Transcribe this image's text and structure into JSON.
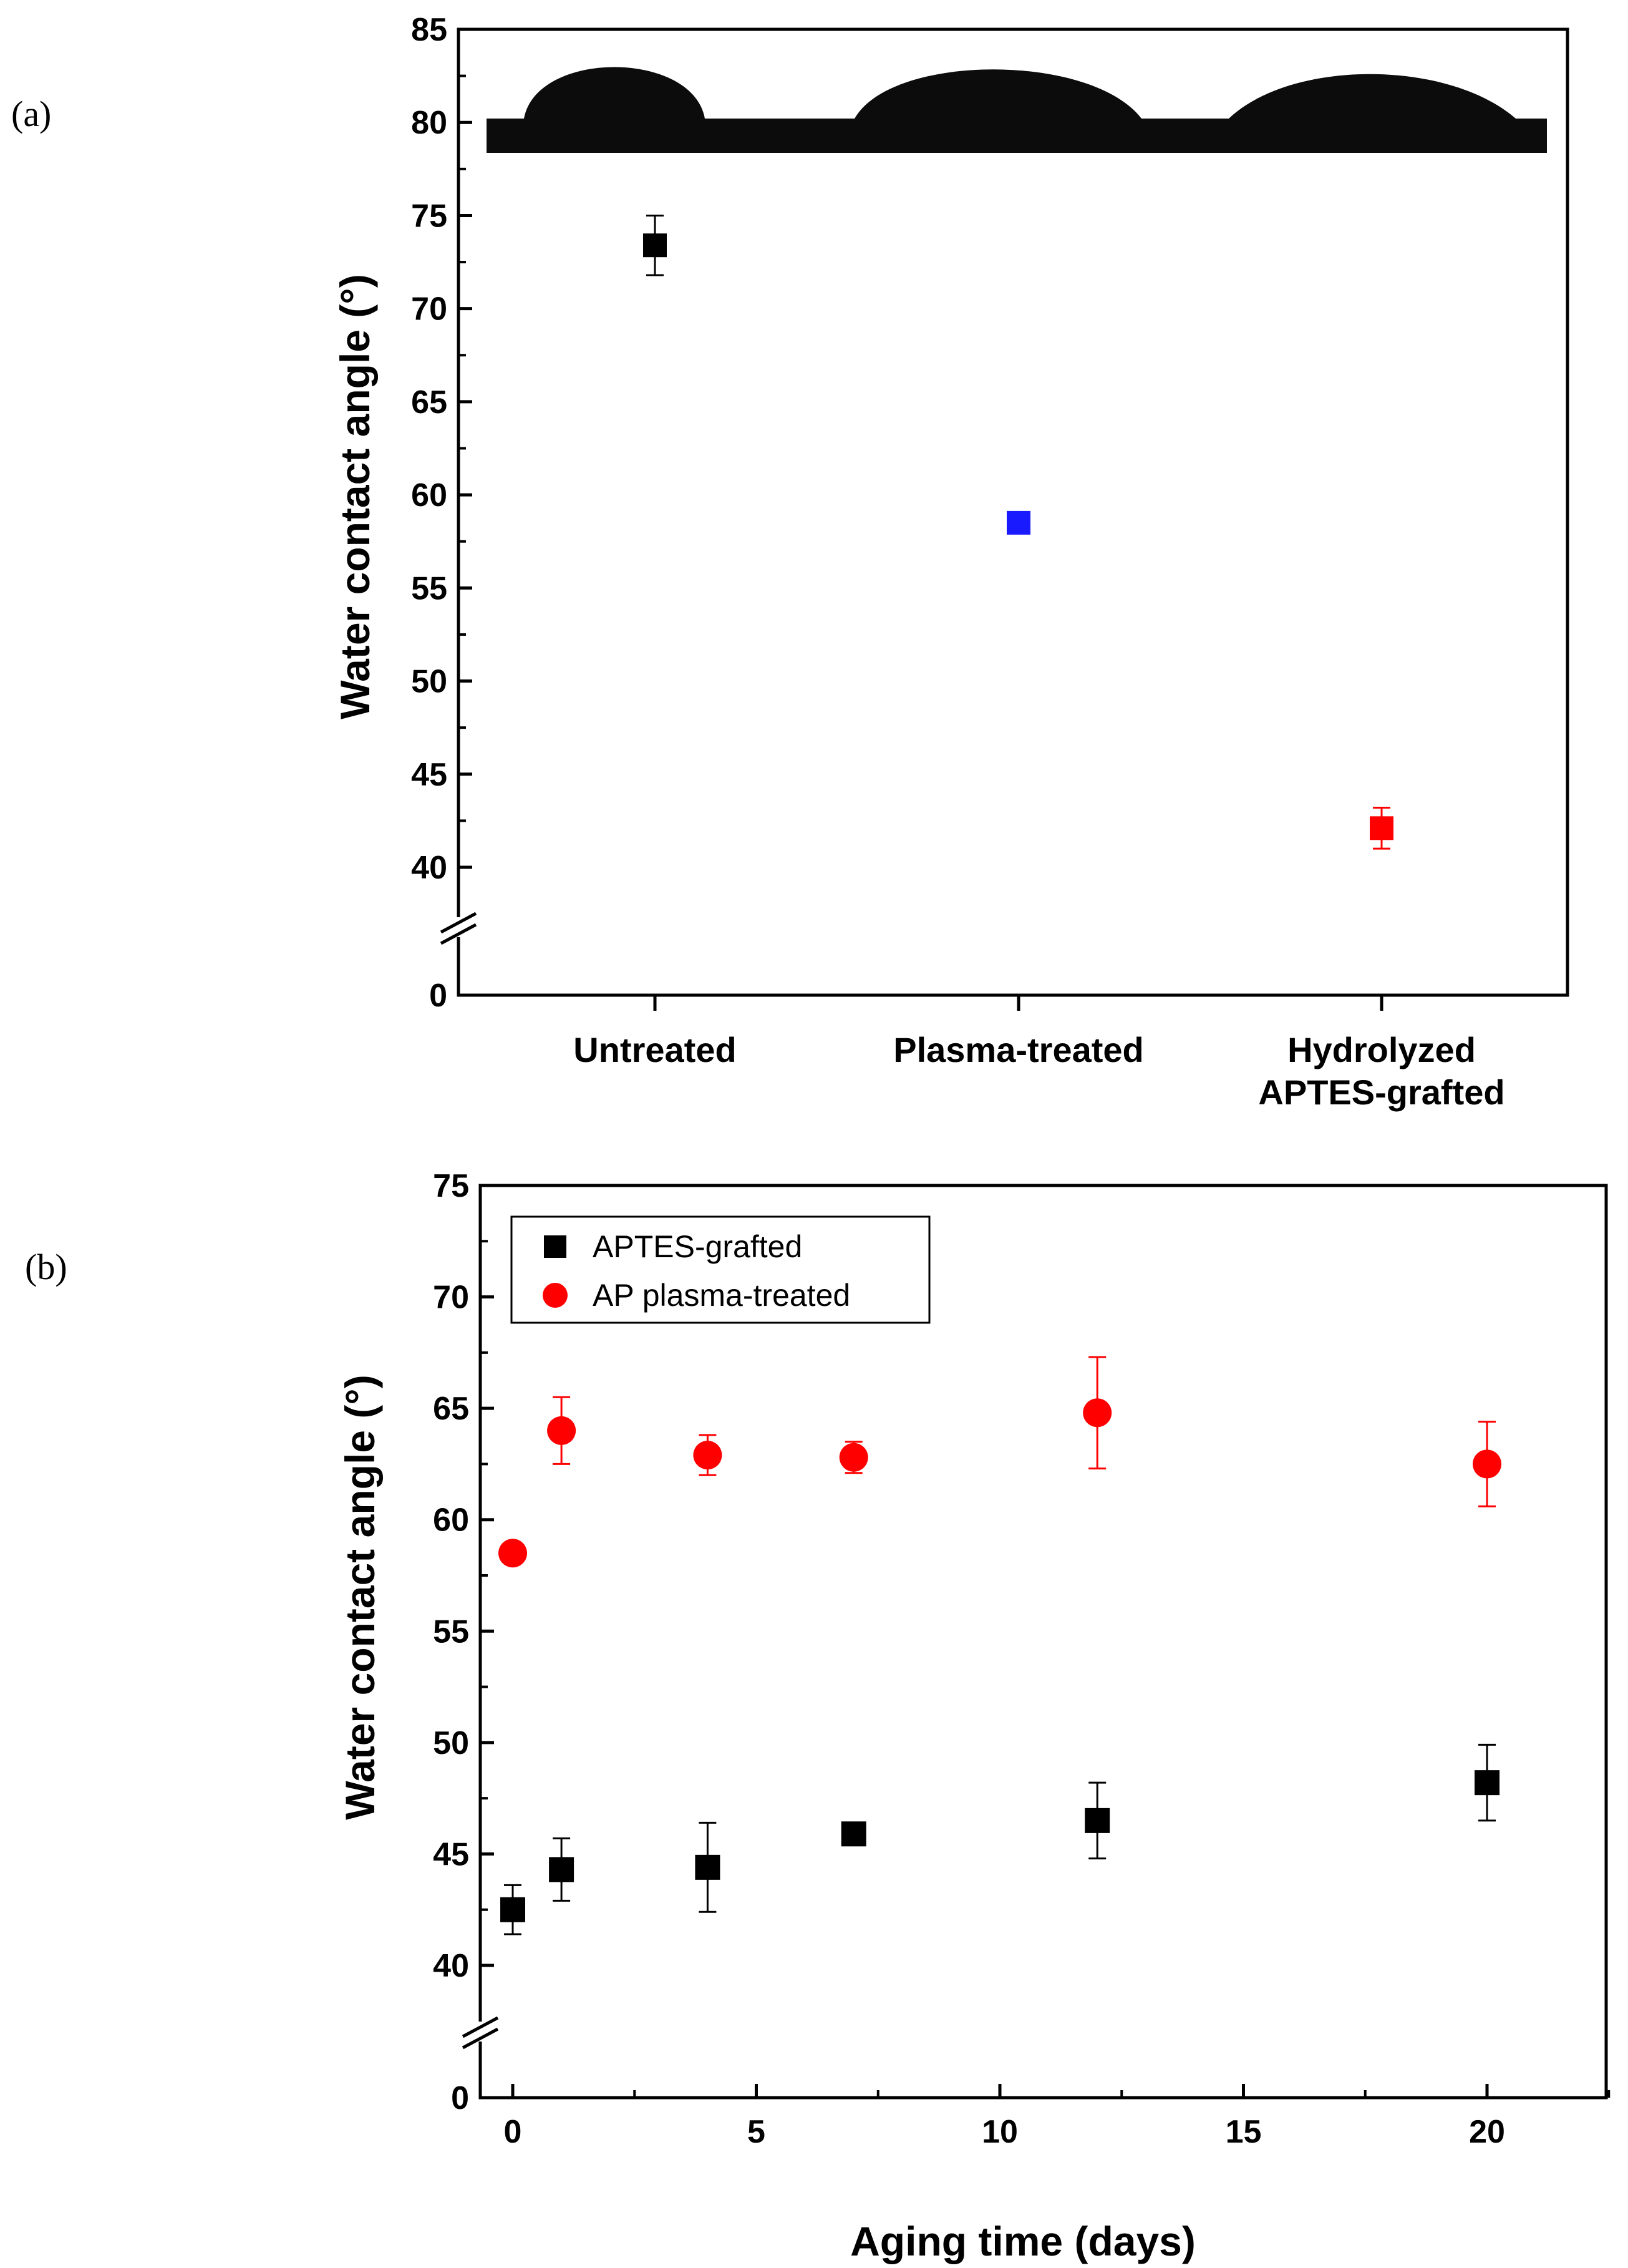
{
  "panels": {
    "a": {
      "label": "(a)"
    },
    "b": {
      "label": "(b)"
    }
  },
  "chart_data": [
    {
      "type": "scatter",
      "panel": "a",
      "categories": [
        "Untreated",
        "Plasma-treated",
        "Hydrolyzed\nAPTES-grafted"
      ],
      "category_display": [
        [
          "Untreated"
        ],
        [
          "Plasma-treated"
        ],
        [
          "Hydrolyzed",
          "APTES-grafted"
        ]
      ],
      "points": [
        {
          "category": "Untreated",
          "value": 73.4,
          "error": 1.6,
          "color": "#000000",
          "marker": "square"
        },
        {
          "category": "Plasma-treated",
          "value": 58.5,
          "error": 0,
          "color": "#1a1aff",
          "marker": "square"
        },
        {
          "category": "Hydrolyzed\nAPTES-grafted",
          "value": 42.1,
          "error": 1.1,
          "color": "#ff0000",
          "marker": "square"
        }
      ],
      "ylabel": "Water contact angle (°)",
      "xlabel": "",
      "ylim": [
        0,
        85
      ],
      "axis_break": [
        38,
        0
      ],
      "yticks": [
        0,
        40,
        45,
        50,
        55,
        60,
        65,
        70,
        75,
        80,
        85
      ],
      "insets": "droplet photographs above each category",
      "grid": false
    },
    {
      "type": "scatter",
      "panel": "b",
      "xlabel": "Aging time (days)",
      "ylabel": "Water contact angle (°)",
      "xlim": [
        -0.8,
        23
      ],
      "ylim": [
        0,
        75
      ],
      "axis_break": [
        38,
        0
      ],
      "xticks": [
        0,
        5,
        10,
        15,
        20
      ],
      "yticks": [
        0,
        40,
        45,
        50,
        55,
        60,
        65,
        70,
        75
      ],
      "legend_position": "top-left",
      "grid": false,
      "series": [
        {
          "name": "APTES-grafted",
          "marker": "square",
          "color": "#000000",
          "x": [
            0,
            1,
            4,
            7,
            12,
            20
          ],
          "y": [
            42.5,
            44.3,
            44.4,
            45.9,
            46.5,
            48.2
          ],
          "error": [
            1.1,
            1.4,
            2.0,
            0.4,
            1.7,
            1.7
          ]
        },
        {
          "name": "AP plasma-treated",
          "marker": "circle",
          "color": "#ff0000",
          "x": [
            0,
            1,
            4,
            7,
            12,
            20
          ],
          "y": [
            58.5,
            64.0,
            62.9,
            62.8,
            64.8,
            62.5
          ],
          "error": [
            0,
            1.5,
            0.9,
            0.7,
            2.5,
            1.9
          ]
        }
      ]
    }
  ]
}
